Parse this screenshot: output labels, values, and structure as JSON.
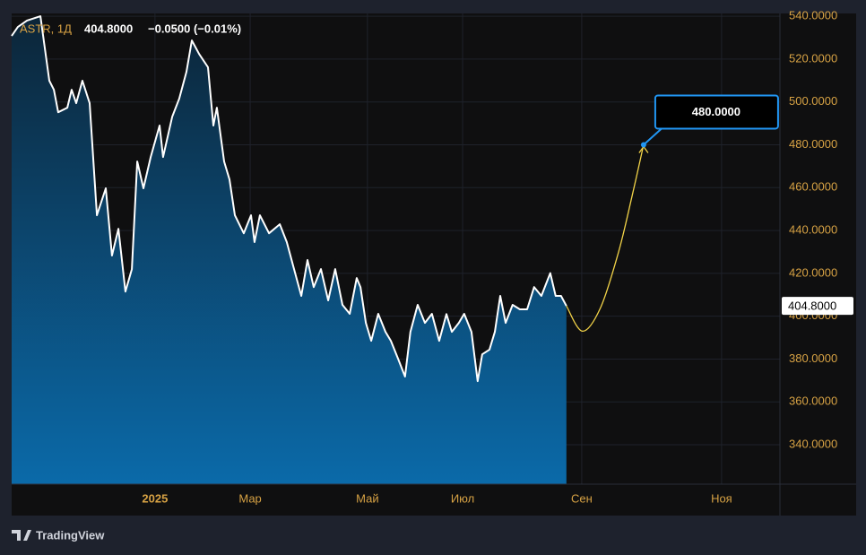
{
  "chart_data": {
    "type": "area",
    "header": {
      "symbol": "ASTR, 1Д",
      "last": "404.8000",
      "change": "−0.0500 (−0.01%)"
    },
    "x": [
      0,
      2.3,
      5.7,
      10.7,
      14,
      15.7,
      17.3,
      20.7,
      22.3,
      24,
      26.3,
      29,
      31.7,
      35,
      37.3,
      39.7,
      42.3,
      44.7,
      46.7,
      49,
      51.7,
      55,
      56.3,
      59.7,
      62.3,
      65,
      67,
      69.7,
      73,
      75,
      76.3,
      79,
      81,
      83,
      86.3,
      89,
      90.3,
      92.3,
      95.7,
      99.7,
      102.3,
      105,
      107.7,
      110,
      112.3,
      115,
      117.7,
      120.3,
      123,
      125.7,
      128.3,
      129.7,
      131.7,
      133.7,
      136.3,
      139,
      141,
      143.7,
      146.3,
      148.3,
      151,
      153.7,
      156.3,
      159,
      161.7,
      163.7,
      166.3,
      168.3,
      171,
      173.3,
      175,
      177.7,
      179.7,
      181.7,
      183.7,
      186.3,
      189,
      191.7,
      194.3,
      197,
      200.3,
      202.3,
      204.3,
      206.3
    ],
    "values": [
      530.8,
      535,
      538,
      540,
      509.9,
      505.7,
      495.2,
      497.3,
      505.7,
      499.4,
      509.9,
      499.4,
      447.1,
      459.7,
      428.3,
      440.8,
      411.5,
      422,
      472.2,
      459.7,
      474.3,
      489,
      474.3,
      493.1,
      501.5,
      514.1,
      528.7,
      522.4,
      516.2,
      489,
      497.3,
      472.2,
      463.8,
      447.1,
      438.7,
      447.1,
      434.6,
      447.1,
      438.7,
      442.9,
      434.6,
      422,
      409.5,
      426.2,
      413.6,
      422,
      407.4,
      422,
      405.3,
      401.1,
      417.8,
      413.6,
      396.9,
      388.5,
      401.1,
      392.7,
      388.5,
      380.2,
      371.8,
      392.7,
      405.3,
      396.9,
      401.1,
      388.5,
      401,
      392.7,
      396.9,
      401.1,
      392.7,
      369.7,
      382.2,
      384.4,
      392.7,
      409.5,
      396.9,
      405.3,
      403.2,
      403.2,
      413.6,
      409.5,
      420.1,
      409.5,
      409.5,
      404.8
    ],
    "color": "#ffffff",
    "fill_top": "#0c2538",
    "fill_bottom": "#0b6aa9",
    "xlim": [
      0,
      285.7
    ],
    "ylim": [
      321.6,
      541.3
    ],
    "yticks": [
      {
        "value": 340,
        "label": "340.0000"
      },
      {
        "value": 360,
        "label": "360.0000"
      },
      {
        "value": 380,
        "label": "380.0000"
      },
      {
        "value": 400,
        "label": "400.0000"
      },
      {
        "value": 420,
        "label": "420.0000"
      },
      {
        "value": 440,
        "label": "440.0000"
      },
      {
        "value": 460,
        "label": "460.0000"
      },
      {
        "value": 480,
        "label": "480.0000"
      },
      {
        "value": 500,
        "label": "500.0000"
      },
      {
        "value": 520,
        "label": "520.0000"
      },
      {
        "value": 540,
        "label": "540.0000"
      }
    ],
    "xticks": [
      {
        "value": 53.3,
        "label": "2025"
      },
      {
        "value": 88.7,
        "label": "Мар"
      },
      {
        "value": 132.3,
        "label": "Май"
      },
      {
        "value": 167.7,
        "label": "Июл"
      },
      {
        "value": 212,
        "label": "Сен"
      },
      {
        "value": 264,
        "label": "Ноя"
      }
    ],
    "grid": true,
    "price_tag": {
      "value": 404.8,
      "label": "404.8000"
    },
    "forecast": {
      "x": [
        206.3,
        212.3,
        219,
        225.7,
        230.7,
        235
      ],
      "values": [
        404.8,
        393,
        404,
        430,
        456,
        480
      ],
      "color": "#f2d348"
    },
    "callout": {
      "value": 480,
      "label": "480.0000",
      "x": 235
    },
    "brand": "TradingView"
  }
}
